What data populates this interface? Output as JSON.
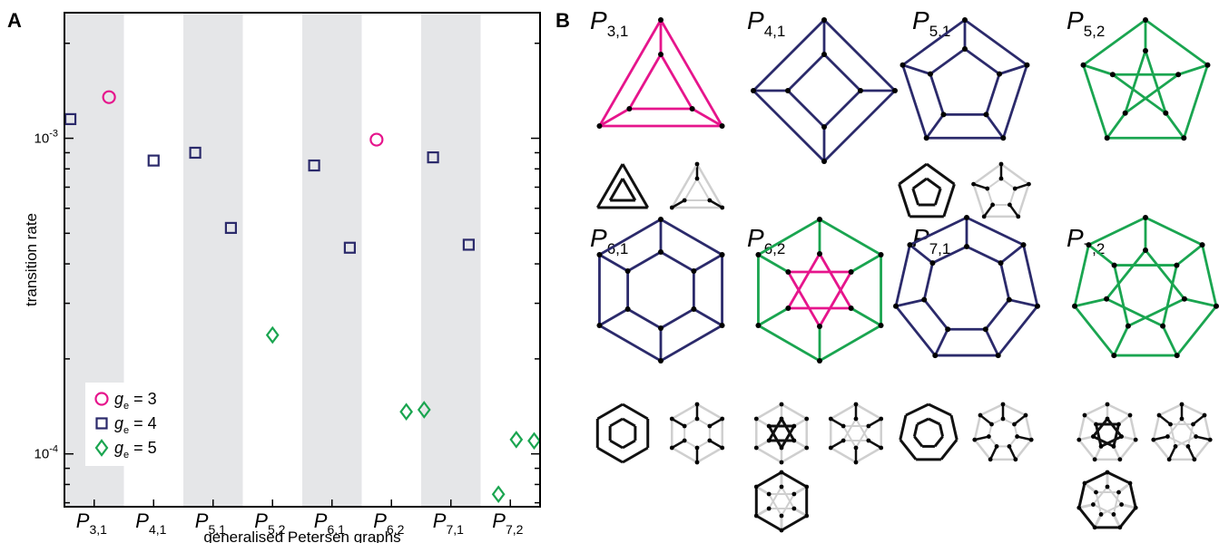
{
  "panel_a": {
    "label": "A"
  },
  "panel_b": {
    "label": "B"
  },
  "colors": {
    "magenta": "#e6158c",
    "navy": "#2b2a6b",
    "green": "#1aa550",
    "shade": "#e5e6e8",
    "black": "#000000",
    "light_gray": "#cfcfcf"
  },
  "chart_data": {
    "type": "scatter",
    "xlabel": "generalised Petersen graphs",
    "ylabel": "transition rate",
    "yscale": "log",
    "ylim": [
      6.8e-05,
      0.0025
    ],
    "yticks": [
      {
        "value": 0.001,
        "base": "10",
        "exp": "-3"
      },
      {
        "value": 0.0001,
        "base": "10",
        "exp": "-4"
      }
    ],
    "grid": false,
    "shaded_categories": [
      0,
      2,
      4,
      6
    ],
    "categories": [
      {
        "main": "P",
        "sub": "3,1"
      },
      {
        "main": "P",
        "sub": "4,1"
      },
      {
        "main": "P",
        "sub": "5,1"
      },
      {
        "main": "P",
        "sub": "5,2"
      },
      {
        "main": "P",
        "sub": "6,1"
      },
      {
        "main": "P",
        "sub": "6,2"
      },
      {
        "main": "P",
        "sub": "7,1"
      },
      {
        "main": "P",
        "sub": "7,2"
      }
    ],
    "legend": {
      "position": "bottom-left"
    },
    "series": [
      {
        "name": "g_e = 3",
        "label_main": "g",
        "label_sub": "e",
        "label_rest": " = 3",
        "marker": "circle",
        "color": "#e6158c",
        "points": [
          {
            "x": 0,
            "offset": 0.25,
            "y": 0.00135
          },
          {
            "x": 5,
            "offset": -0.25,
            "y": 0.00099
          }
        ]
      },
      {
        "name": "g_e = 4",
        "label_main": "g",
        "label_sub": "e",
        "label_rest": " = 4",
        "marker": "square",
        "color": "#2b2a6b",
        "points": [
          {
            "x": 0,
            "offset": -0.4,
            "y": 0.00115
          },
          {
            "x": 1,
            "offset": 0,
            "y": 0.00085
          },
          {
            "x": 2,
            "offset": -0.3,
            "y": 0.0009
          },
          {
            "x": 2,
            "offset": 0.3,
            "y": 0.00052
          },
          {
            "x": 4,
            "offset": -0.3,
            "y": 0.00082
          },
          {
            "x": 4,
            "offset": 0.3,
            "y": 0.00045
          },
          {
            "x": 6,
            "offset": -0.3,
            "y": 0.00087
          },
          {
            "x": 6,
            "offset": 0.3,
            "y": 0.00046
          }
        ]
      },
      {
        "name": "g_e = 5",
        "label_main": "g",
        "label_sub": "e",
        "label_rest": " = 5",
        "marker": "diamond",
        "color": "#1aa550",
        "points": [
          {
            "x": 3,
            "offset": 0,
            "y": 0.000238
          },
          {
            "x": 5,
            "offset": 0.25,
            "y": 0.000136
          },
          {
            "x": 5,
            "offset": 0.55,
            "y": 0.000138
          },
          {
            "x": 7,
            "offset": -0.2,
            "y": 7.45e-05
          },
          {
            "x": 7,
            "offset": 0.1,
            "y": 0.000111
          },
          {
            "x": 7,
            "offset": 0.4,
            "y": 0.00011
          }
        ]
      }
    ]
  },
  "graphs": [
    {
      "main": "P",
      "sub": "3,1",
      "n": 3,
      "k": 1,
      "color": "#e6158c",
      "inner_color": "#e6158c",
      "col": 0,
      "row": 0,
      "thumbs": [
        {
          "type": "cycles"
        },
        {
          "type": "matching"
        }
      ]
    },
    {
      "main": "P",
      "sub": "4,1",
      "n": 4,
      "k": 1,
      "color": "#2b2a6b",
      "inner_color": "#2b2a6b",
      "col": 1,
      "row": 0,
      "thumbs": []
    },
    {
      "main": "P",
      "sub": "5,1",
      "n": 5,
      "k": 1,
      "color": "#2b2a6b",
      "inner_color": "#2b2a6b",
      "col": 2,
      "row": 0,
      "thumbs": [
        {
          "type": "cycles"
        },
        {
          "type": "matching"
        }
      ]
    },
    {
      "main": "P",
      "sub": "5,2",
      "n": 5,
      "k": 2,
      "color": "#1aa550",
      "inner_color": "#1aa550",
      "col": 3,
      "row": 0,
      "thumbs": []
    },
    {
      "main": "P",
      "sub": "6,1",
      "n": 6,
      "k": 1,
      "color": "#2b2a6b",
      "inner_color": "#2b2a6b",
      "col": 0,
      "row": 1,
      "thumbs": [
        {
          "type": "cycles"
        },
        {
          "type": "matching"
        }
      ]
    },
    {
      "main": "P",
      "sub": "6,2",
      "n": 6,
      "k": 2,
      "color": "#1aa550",
      "inner_color": "#e6158c",
      "col": 1,
      "row": 1,
      "thumbs": [
        {
          "type": "inner"
        },
        {
          "type": "matching"
        },
        {
          "type": "outer"
        }
      ]
    },
    {
      "main": "P",
      "sub": "7,1",
      "n": 7,
      "k": 1,
      "color": "#2b2a6b",
      "inner_color": "#2b2a6b",
      "col": 2,
      "row": 1,
      "thumbs": [
        {
          "type": "cycles"
        },
        {
          "type": "matching"
        }
      ]
    },
    {
      "main": "P",
      "sub": "7,2",
      "n": 7,
      "k": 2,
      "color": "#1aa550",
      "inner_color": "#1aa550",
      "col": 3,
      "row": 1,
      "thumbs": [
        {
          "type": "inner"
        },
        {
          "type": "matching"
        },
        {
          "type": "outer"
        }
      ]
    }
  ]
}
